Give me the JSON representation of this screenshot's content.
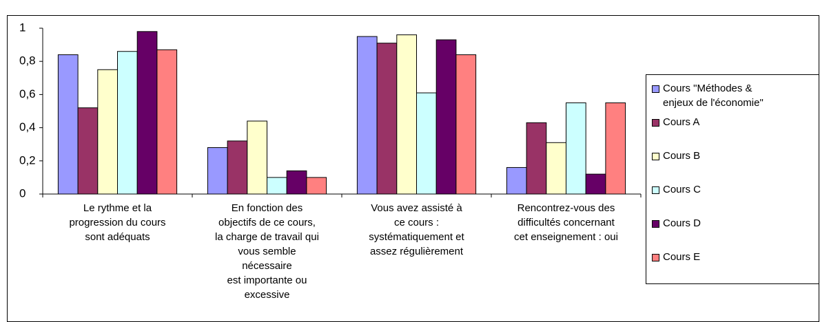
{
  "chart_data": {
    "type": "bar",
    "categories": [
      "Le rythme et la\nprogression du cours\nsont adéquats",
      "En fonction des\nobjectifs de ce cours,\nla charge de travail qui\nvous semble\nnécessaire\nest importante ou\nexcessive",
      "Vous avez assisté à\nce cours :\nsystématiquement et\nassez régulièrement",
      "Rencontrez-vous des\ndifficultés concernant\ncet enseignement : oui"
    ],
    "series": [
      {
        "name": "Cours \"Méthodes &\nenjeux de l'économie\"",
        "color": "#9999ff",
        "values": [
          0.84,
          0.28,
          0.95,
          0.16
        ]
      },
      {
        "name": "Cours A",
        "color": "#993366",
        "values": [
          0.52,
          0.32,
          0.91,
          0.43
        ]
      },
      {
        "name": "Cours B",
        "color": "#ffffcc",
        "values": [
          0.75,
          0.44,
          0.96,
          0.31
        ]
      },
      {
        "name": "Cours C",
        "color": "#ccffff",
        "values": [
          0.86,
          0.1,
          0.61,
          0.55
        ]
      },
      {
        "name": "Cours D",
        "color": "#660066",
        "values": [
          0.98,
          0.14,
          0.93,
          0.12
        ]
      },
      {
        "name": "Cours E",
        "color": "#ff8080",
        "values": [
          0.87,
          0.1,
          0.84,
          0.55
        ]
      }
    ],
    "ylim": [
      0,
      1
    ],
    "yticks": [
      0,
      {
        "value": 0.2,
        "label": "0,2"
      },
      {
        "value": 0.4,
        "label": "0,4"
      },
      {
        "value": 0.6,
        "label": "0,6"
      },
      {
        "value": 0.8,
        "label": "0,8"
      },
      1
    ],
    "legend": "right"
  }
}
